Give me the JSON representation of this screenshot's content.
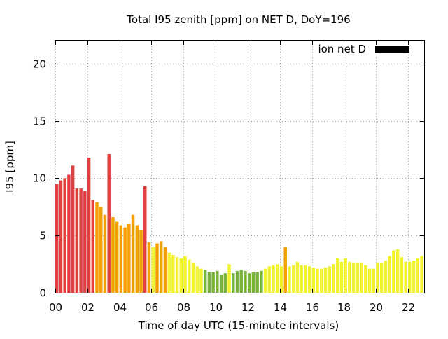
{
  "chart_data": {
    "type": "bar",
    "title": "Total I95 zenith [ppm] on NET D, DoY=196",
    "xlabel": "Time of day UTC (15-minute intervals)",
    "ylabel": "I95 [ppm]",
    "xlim": [
      0,
      23
    ],
    "ylim": [
      0,
      22
    ],
    "grid": true,
    "legend_position": "top-right",
    "legend_entries": [
      {
        "name": "ion net D",
        "color": "#000000"
      }
    ],
    "x_ticks": [
      {
        "value": 0,
        "label": "00"
      },
      {
        "value": 2,
        "label": "02"
      },
      {
        "value": 4,
        "label": "04"
      },
      {
        "value": 6,
        "label": "06"
      },
      {
        "value": 8,
        "label": "08"
      },
      {
        "value": 10,
        "label": "10"
      },
      {
        "value": 12,
        "label": "12"
      },
      {
        "value": 14,
        "label": "14"
      },
      {
        "value": 16,
        "label": "16"
      },
      {
        "value": 18,
        "label": "18"
      },
      {
        "value": 20,
        "label": "20"
      },
      {
        "value": 22,
        "label": "22"
      }
    ],
    "y_ticks": [
      {
        "value": 0,
        "label": "0"
      },
      {
        "value": 5,
        "label": "5"
      },
      {
        "value": 10,
        "label": "10"
      },
      {
        "value": 15,
        "label": "15"
      },
      {
        "value": 20,
        "label": "20"
      }
    ],
    "color_key": {
      "red": "#e04040",
      "orange": "#f5a000",
      "yellow": "#f2f230",
      "green": "#78b43c"
    },
    "bars": [
      {
        "x": 0.0,
        "value": 9.5,
        "color": "red"
      },
      {
        "x": 0.25,
        "value": 9.8,
        "color": "red"
      },
      {
        "x": 0.5,
        "value": 10.0,
        "color": "red"
      },
      {
        "x": 0.75,
        "value": 10.3,
        "color": "red"
      },
      {
        "x": 1.0,
        "value": 11.1,
        "color": "red"
      },
      {
        "x": 1.25,
        "value": 9.1,
        "color": "red"
      },
      {
        "x": 1.5,
        "value": 9.1,
        "color": "red"
      },
      {
        "x": 1.75,
        "value": 8.9,
        "color": "red"
      },
      {
        "x": 2.0,
        "value": 11.8,
        "color": "red"
      },
      {
        "x": 2.25,
        "value": 8.1,
        "color": "red"
      },
      {
        "x": 2.5,
        "value": 7.9,
        "color": "orange"
      },
      {
        "x": 2.75,
        "value": 7.5,
        "color": "orange"
      },
      {
        "x": 3.0,
        "value": 6.8,
        "color": "orange"
      },
      {
        "x": 3.25,
        "value": 12.1,
        "color": "red"
      },
      {
        "x": 3.5,
        "value": 6.6,
        "color": "orange"
      },
      {
        "x": 3.75,
        "value": 6.2,
        "color": "orange"
      },
      {
        "x": 4.0,
        "value": 5.9,
        "color": "orange"
      },
      {
        "x": 4.25,
        "value": 5.7,
        "color": "orange"
      },
      {
        "x": 4.5,
        "value": 6.0,
        "color": "orange"
      },
      {
        "x": 4.75,
        "value": 6.8,
        "color": "orange"
      },
      {
        "x": 5.0,
        "value": 5.9,
        "color": "orange"
      },
      {
        "x": 5.25,
        "value": 5.5,
        "color": "orange"
      },
      {
        "x": 5.5,
        "value": 9.3,
        "color": "red"
      },
      {
        "x": 5.75,
        "value": 4.4,
        "color": "orange"
      },
      {
        "x": 6.0,
        "value": 4.0,
        "color": "yellow"
      },
      {
        "x": 6.25,
        "value": 4.3,
        "color": "orange"
      },
      {
        "x": 6.5,
        "value": 4.5,
        "color": "orange"
      },
      {
        "x": 6.75,
        "value": 4.0,
        "color": "orange"
      },
      {
        "x": 7.0,
        "value": 3.5,
        "color": "yellow"
      },
      {
        "x": 7.25,
        "value": 3.3,
        "color": "yellow"
      },
      {
        "x": 7.5,
        "value": 3.1,
        "color": "yellow"
      },
      {
        "x": 7.75,
        "value": 3.0,
        "color": "yellow"
      },
      {
        "x": 8.0,
        "value": 3.2,
        "color": "yellow"
      },
      {
        "x": 8.25,
        "value": 2.9,
        "color": "yellow"
      },
      {
        "x": 8.5,
        "value": 2.6,
        "color": "yellow"
      },
      {
        "x": 8.75,
        "value": 2.3,
        "color": "yellow"
      },
      {
        "x": 9.0,
        "value": 2.1,
        "color": "yellow"
      },
      {
        "x": 9.25,
        "value": 2.0,
        "color": "green"
      },
      {
        "x": 9.5,
        "value": 1.8,
        "color": "green"
      },
      {
        "x": 9.75,
        "value": 1.8,
        "color": "green"
      },
      {
        "x": 10.0,
        "value": 1.9,
        "color": "green"
      },
      {
        "x": 10.25,
        "value": 1.6,
        "color": "green"
      },
      {
        "x": 10.5,
        "value": 1.7,
        "color": "green"
      },
      {
        "x": 10.75,
        "value": 2.5,
        "color": "yellow"
      },
      {
        "x": 11.0,
        "value": 1.7,
        "color": "green"
      },
      {
        "x": 11.25,
        "value": 1.9,
        "color": "green"
      },
      {
        "x": 11.5,
        "value": 2.0,
        "color": "green"
      },
      {
        "x": 11.75,
        "value": 1.9,
        "color": "green"
      },
      {
        "x": 12.0,
        "value": 1.7,
        "color": "green"
      },
      {
        "x": 12.25,
        "value": 1.8,
        "color": "green"
      },
      {
        "x": 12.5,
        "value": 1.8,
        "color": "green"
      },
      {
        "x": 12.75,
        "value": 1.9,
        "color": "green"
      },
      {
        "x": 13.0,
        "value": 2.1,
        "color": "yellow"
      },
      {
        "x": 13.25,
        "value": 2.3,
        "color": "yellow"
      },
      {
        "x": 13.5,
        "value": 2.4,
        "color": "yellow"
      },
      {
        "x": 13.75,
        "value": 2.5,
        "color": "yellow"
      },
      {
        "x": 14.0,
        "value": 2.3,
        "color": "yellow"
      },
      {
        "x": 14.25,
        "value": 4.0,
        "color": "orange"
      },
      {
        "x": 14.5,
        "value": 2.3,
        "color": "yellow"
      },
      {
        "x": 14.75,
        "value": 2.4,
        "color": "yellow"
      },
      {
        "x": 15.0,
        "value": 2.7,
        "color": "yellow"
      },
      {
        "x": 15.25,
        "value": 2.4,
        "color": "yellow"
      },
      {
        "x": 15.5,
        "value": 2.4,
        "color": "yellow"
      },
      {
        "x": 15.75,
        "value": 2.3,
        "color": "yellow"
      },
      {
        "x": 16.0,
        "value": 2.2,
        "color": "yellow"
      },
      {
        "x": 16.25,
        "value": 2.1,
        "color": "yellow"
      },
      {
        "x": 16.5,
        "value": 2.1,
        "color": "yellow"
      },
      {
        "x": 16.75,
        "value": 2.2,
        "color": "yellow"
      },
      {
        "x": 17.0,
        "value": 2.3,
        "color": "yellow"
      },
      {
        "x": 17.25,
        "value": 2.5,
        "color": "yellow"
      },
      {
        "x": 17.5,
        "value": 3.0,
        "color": "yellow"
      },
      {
        "x": 17.75,
        "value": 2.7,
        "color": "yellow"
      },
      {
        "x": 18.0,
        "value": 3.0,
        "color": "yellow"
      },
      {
        "x": 18.25,
        "value": 2.7,
        "color": "yellow"
      },
      {
        "x": 18.5,
        "value": 2.6,
        "color": "yellow"
      },
      {
        "x": 18.75,
        "value": 2.6,
        "color": "yellow"
      },
      {
        "x": 19.0,
        "value": 2.6,
        "color": "yellow"
      },
      {
        "x": 19.25,
        "value": 2.4,
        "color": "yellow"
      },
      {
        "x": 19.5,
        "value": 2.1,
        "color": "yellow"
      },
      {
        "x": 19.75,
        "value": 2.1,
        "color": "yellow"
      },
      {
        "x": 20.0,
        "value": 2.6,
        "color": "yellow"
      },
      {
        "x": 20.25,
        "value": 2.6,
        "color": "yellow"
      },
      {
        "x": 20.5,
        "value": 2.8,
        "color": "yellow"
      },
      {
        "x": 20.75,
        "value": 3.2,
        "color": "yellow"
      },
      {
        "x": 21.0,
        "value": 3.7,
        "color": "yellow"
      },
      {
        "x": 21.25,
        "value": 3.8,
        "color": "yellow"
      },
      {
        "x": 21.5,
        "value": 3.1,
        "color": "yellow"
      },
      {
        "x": 21.75,
        "value": 2.7,
        "color": "yellow"
      },
      {
        "x": 22.0,
        "value": 2.7,
        "color": "yellow"
      },
      {
        "x": 22.25,
        "value": 2.8,
        "color": "yellow"
      },
      {
        "x": 22.5,
        "value": 3.0,
        "color": "yellow"
      },
      {
        "x": 22.75,
        "value": 3.2,
        "color": "yellow"
      }
    ]
  }
}
